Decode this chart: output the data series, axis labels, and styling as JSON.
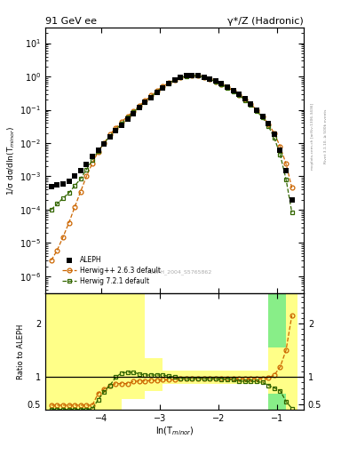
{
  "title_left": "91 GeV ee",
  "title_right": "γ*/Z (Hadronic)",
  "xlabel": "ln(T$_{minor}$)",
  "ylabel_main": "1/σ dσ/dln(T$_{minor}$)",
  "ylabel_ratio": "Ratio to ALEPH",
  "watermark": "ALEPH_2004_S5765862",
  "right_label_top": "Rivet 3.1.10, ≥ 500k events",
  "right_label_bot": "mcplots.cern.ch [arXiv:1306.3436]",
  "xlim": [
    -4.95,
    -0.55
  ],
  "ylim_main": [
    3e-07,
    30
  ],
  "ylim_ratio": [
    0.4,
    2.55
  ],
  "bg_color": "#ffffff",
  "aleph_color": "#000000",
  "herwig263_color": "#cc6600",
  "herwig721_color": "#336600",
  "band_yellow": "#ffff88",
  "band_green": "#88ee88",
  "legend_labels": [
    "ALEPH",
    "Herwig++ 2.6.3 default",
    "Herwig 7.2.1 default"
  ],
  "aleph_data_x": [
    -4.85,
    -4.75,
    -4.65,
    -4.55,
    -4.45,
    -4.35,
    -4.25,
    -4.15,
    -4.05,
    -3.95,
    -3.85,
    -3.75,
    -3.65,
    -3.55,
    -3.45,
    -3.35,
    -3.25,
    -3.15,
    -3.05,
    -2.95,
    -2.85,
    -2.75,
    -2.65,
    -2.55,
    -2.45,
    -2.35,
    -2.25,
    -2.15,
    -2.05,
    -1.95,
    -1.85,
    -1.75,
    -1.65,
    -1.55,
    -1.45,
    -1.35,
    -1.25,
    -1.15,
    -1.05,
    -0.95,
    -0.85,
    -0.75
  ],
  "aleph_data_y": [
    0.0005,
    0.00055,
    0.0006,
    0.0007,
    0.001,
    0.0015,
    0.0023,
    0.004,
    0.006,
    0.0095,
    0.015,
    0.023,
    0.035,
    0.053,
    0.078,
    0.115,
    0.165,
    0.235,
    0.335,
    0.46,
    0.61,
    0.79,
    0.96,
    1.06,
    1.08,
    1.05,
    0.95,
    0.85,
    0.72,
    0.6,
    0.48,
    0.38,
    0.29,
    0.21,
    0.15,
    0.1,
    0.065,
    0.038,
    0.018,
    0.006,
    0.0015,
    0.0002
  ],
  "herwig263_x": [
    -4.85,
    -4.75,
    -4.65,
    -4.55,
    -4.45,
    -4.35,
    -4.25,
    -4.15,
    -4.05,
    -3.95,
    -3.85,
    -3.75,
    -3.65,
    -3.55,
    -3.45,
    -3.35,
    -3.25,
    -3.15,
    -3.05,
    -2.95,
    -2.85,
    -2.75,
    -2.65,
    -2.55,
    -2.45,
    -2.35,
    -2.25,
    -2.15,
    -2.05,
    -1.95,
    -1.85,
    -1.75,
    -1.65,
    -1.55,
    -1.45,
    -1.35,
    -1.25,
    -1.15,
    -1.05,
    -0.95,
    -0.85,
    -0.75
  ],
  "herwig263_y": [
    3e-06,
    6e-06,
    1.5e-05,
    4e-05,
    0.00012,
    0.00035,
    0.001,
    0.0025,
    0.0055,
    0.01,
    0.018,
    0.029,
    0.044,
    0.063,
    0.093,
    0.133,
    0.188,
    0.268,
    0.378,
    0.5,
    0.65,
    0.8,
    0.95,
    1.04,
    1.07,
    1.04,
    0.94,
    0.84,
    0.71,
    0.59,
    0.47,
    0.37,
    0.28,
    0.205,
    0.147,
    0.099,
    0.064,
    0.037,
    0.0198,
    0.0078,
    0.0024,
    0.00045
  ],
  "herwig721_x": [
    -4.85,
    -4.75,
    -4.65,
    -4.55,
    -4.45,
    -4.35,
    -4.25,
    -4.15,
    -4.05,
    -3.95,
    -3.85,
    -3.75,
    -3.65,
    -3.55,
    -3.45,
    -3.35,
    -3.25,
    -3.15,
    -3.05,
    -2.95,
    -2.85,
    -2.75,
    -2.65,
    -2.55,
    -2.45,
    -2.35,
    -2.25,
    -2.15,
    -2.05,
    -1.95,
    -1.85,
    -1.75,
    -1.65,
    -1.55,
    -1.45,
    -1.35,
    -1.25,
    -1.15,
    -1.05,
    -0.95,
    -0.85,
    -0.75
  ],
  "herwig721_y": [
    0.0001,
    0.00015,
    0.00022,
    0.00032,
    0.00052,
    0.00085,
    0.0016,
    0.0031,
    0.0058,
    0.0098,
    0.0165,
    0.0255,
    0.0388,
    0.059,
    0.086,
    0.122,
    0.172,
    0.247,
    0.352,
    0.482,
    0.62,
    0.782,
    0.932,
    1.03,
    1.07,
    1.04,
    0.932,
    0.832,
    0.702,
    0.582,
    0.462,
    0.362,
    0.272,
    0.197,
    0.139,
    0.0922,
    0.0582,
    0.0322,
    0.0142,
    0.00452,
    0.00082,
    8.2e-05
  ],
  "ratio263_x": [
    -4.85,
    -4.75,
    -4.65,
    -4.55,
    -4.45,
    -4.35,
    -4.25,
    -4.15,
    -4.05,
    -3.95,
    -3.85,
    -3.75,
    -3.65,
    -3.55,
    -3.45,
    -3.35,
    -3.25,
    -3.15,
    -3.05,
    -2.95,
    -2.85,
    -2.75,
    -2.65,
    -2.55,
    -2.45,
    -2.35,
    -2.25,
    -2.15,
    -2.05,
    -1.95,
    -1.85,
    -1.75,
    -1.65,
    -1.55,
    -1.45,
    -1.35,
    -1.25,
    -1.15,
    -1.05,
    -0.95,
    -0.85,
    -0.75
  ],
  "ratio263_y": [
    0.48,
    0.48,
    0.48,
    0.48,
    0.48,
    0.48,
    0.48,
    0.48,
    0.7,
    0.78,
    0.84,
    0.88,
    0.88,
    0.88,
    0.92,
    0.93,
    0.93,
    0.94,
    0.94,
    0.95,
    0.95,
    0.96,
    0.97,
    0.97,
    0.98,
    0.98,
    0.98,
    0.98,
    0.98,
    0.97,
    0.97,
    0.97,
    0.97,
    0.97,
    0.97,
    0.98,
    0.98,
    0.99,
    1.04,
    1.19,
    1.5,
    2.15
  ],
  "ratio721_x": [
    -4.85,
    -4.75,
    -4.65,
    -4.55,
    -4.45,
    -4.35,
    -4.25,
    -4.15,
    -4.05,
    -3.95,
    -3.85,
    -3.75,
    -3.65,
    -3.55,
    -3.45,
    -3.35,
    -3.25,
    -3.15,
    -3.05,
    -2.95,
    -2.85,
    -2.75,
    -2.65,
    -2.55,
    -2.45,
    -2.35,
    -2.25,
    -2.15,
    -2.05,
    -1.95,
    -1.85,
    -1.75,
    -1.65,
    -1.55,
    -1.45,
    -1.35,
    -1.25,
    -1.15,
    -1.05,
    -0.95,
    -0.85,
    -0.75
  ],
  "ratio721_y": [
    0.4,
    0.4,
    0.4,
    0.4,
    0.4,
    0.4,
    0.4,
    0.42,
    0.58,
    0.73,
    0.85,
    1.0,
    1.08,
    1.09,
    1.09,
    1.06,
    1.04,
    1.04,
    1.04,
    1.04,
    1.02,
    1.0,
    0.98,
    0.97,
    0.97,
    0.98,
    0.97,
    0.97,
    0.97,
    0.96,
    0.96,
    0.95,
    0.93,
    0.92,
    0.92,
    0.92,
    0.9,
    0.85,
    0.8,
    0.75,
    0.55,
    0.42
  ],
  "band_x_edges": [
    -4.95,
    -4.85,
    -4.75,
    -4.65,
    -4.55,
    -4.45,
    -4.35,
    -4.25,
    -4.15,
    -4.05,
    -3.95,
    -3.85,
    -3.75,
    -3.65,
    -3.55,
    -3.45,
    -3.35,
    -3.25,
    -3.15,
    -3.05,
    -2.95,
    -2.85,
    -2.75,
    -2.65,
    -2.55,
    -2.45,
    -2.35,
    -2.25,
    -2.15,
    -2.05,
    -1.95,
    -1.85,
    -1.75,
    -1.65,
    -1.55,
    -1.45,
    -1.35,
    -1.25,
    -1.15,
    -1.05,
    -0.95,
    -0.85,
    -0.75,
    -0.65
  ],
  "band_green_lo": [
    0.4,
    0.4,
    0.4,
    0.4,
    0.4,
    0.4,
    0.4,
    0.4,
    0.4,
    0.4,
    0.4,
    0.4,
    0.4,
    0.4,
    0.4,
    0.4,
    0.4,
    0.4,
    0.4,
    0.4,
    2.55,
    2.55,
    2.55,
    2.55,
    2.55,
    2.55,
    2.55,
    2.55,
    2.55,
    2.55,
    2.55,
    2.55,
    2.55,
    2.55,
    2.55,
    2.55,
    2.55,
    2.55,
    2.55,
    2.55,
    0.4,
    0.4,
    0.4,
    0.4
  ],
  "band_green_hi": [
    2.55,
    2.55,
    2.55,
    2.55,
    2.55,
    2.55,
    2.55,
    2.55,
    2.55,
    2.55,
    2.55,
    2.55,
    2.55,
    2.55,
    2.55,
    2.55,
    2.55,
    2.55,
    2.55,
    2.55,
    2.55,
    2.55,
    2.55,
    2.55,
    2.55,
    2.55,
    2.55,
    2.55,
    2.55,
    2.55,
    2.55,
    2.55,
    2.55,
    2.55,
    2.55,
    2.55,
    2.55,
    2.55,
    2.55,
    2.55,
    2.55,
    2.55,
    2.55,
    2.55
  ],
  "band_yellow_lo": [
    0.4,
    0.4,
    0.4,
    0.4,
    0.4,
    0.4,
    0.4,
    0.4,
    0.4,
    0.4,
    0.4,
    0.4,
    0.4,
    0.4,
    0.4,
    0.4,
    0.4,
    0.4,
    0.4,
    0.4,
    2.55,
    2.55,
    2.55,
    2.55,
    2.55,
    2.55,
    2.55,
    2.55,
    2.55,
    2.55,
    2.55,
    2.55,
    2.55,
    2.55,
    2.55,
    2.55,
    2.55,
    2.55,
    2.55,
    2.55,
    0.4,
    0.4,
    0.4,
    0.4
  ],
  "band_yellow_hi": [
    2.55,
    2.55,
    2.55,
    2.55,
    2.55,
    2.55,
    2.55,
    2.55,
    2.55,
    2.55,
    2.55,
    2.55,
    2.55,
    2.55,
    2.55,
    2.55,
    2.55,
    2.55,
    2.55,
    2.55,
    2.55,
    2.55,
    2.55,
    2.55,
    2.55,
    2.55,
    2.55,
    2.55,
    2.55,
    2.55,
    2.55,
    2.55,
    2.55,
    2.55,
    2.55,
    2.55,
    2.55,
    2.55,
    2.55,
    2.55,
    2.55,
    2.55,
    2.55,
    2.55
  ]
}
